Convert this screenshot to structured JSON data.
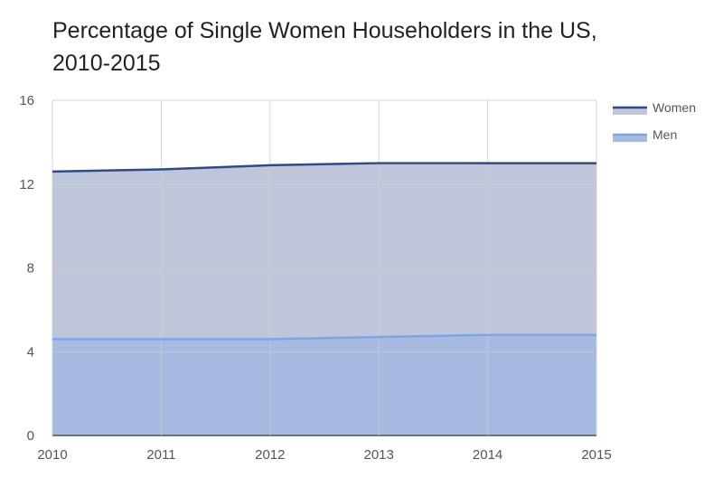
{
  "chart_data": {
    "type": "area",
    "title": "Percentage of Single Women Householders in the US, 2010-2015",
    "xlabel": "",
    "ylabel": "",
    "categories": [
      "2010",
      "2011",
      "2012",
      "2013",
      "2014",
      "2015"
    ],
    "series": [
      {
        "name": "Women",
        "values": [
          12.6,
          12.7,
          12.9,
          13.0,
          13.0,
          13.0
        ],
        "color": "#2f4b87",
        "fill": "#bfc6d9"
      },
      {
        "name": "Men",
        "values": [
          4.6,
          4.6,
          4.6,
          4.7,
          4.8,
          4.8
        ],
        "color": "#7ea3e8",
        "fill": "#a6bbdf"
      }
    ],
    "ylim": [
      0,
      16
    ],
    "yticks": [
      "0",
      "4",
      "8",
      "12",
      "16"
    ],
    "grid": true,
    "legend": "right"
  }
}
